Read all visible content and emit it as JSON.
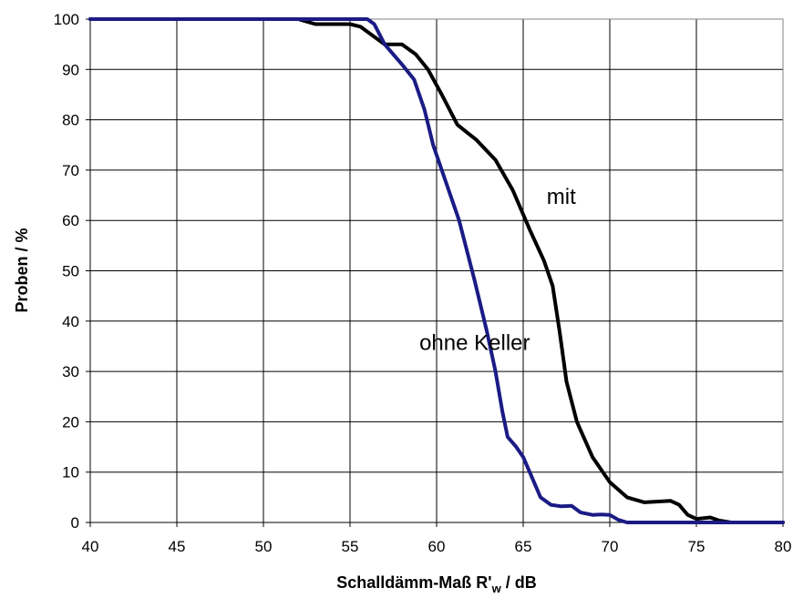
{
  "chart_data": {
    "type": "line",
    "title": "",
    "xlabel_main": "Schalldämm-Maß R'",
    "xlabel_sub": "w",
    "xlabel_tail": " / dB",
    "ylabel": "Proben / %",
    "xlim": [
      40,
      80
    ],
    "ylim": [
      0,
      100
    ],
    "x_ticks": [
      "40",
      "45",
      "50",
      "55",
      "60",
      "65",
      "70",
      "75",
      "80"
    ],
    "y_ticks": [
      "0",
      "10",
      "20",
      "30",
      "40",
      "50",
      "60",
      "70",
      "80",
      "90",
      "100"
    ],
    "grid": true,
    "series": [
      {
        "name": "mit",
        "color": "#000000",
        "points": [
          [
            40,
            100
          ],
          [
            52,
            100
          ],
          [
            53,
            99
          ],
          [
            55,
            99
          ],
          [
            55.6,
            98.5
          ],
          [
            56.2,
            97
          ],
          [
            57,
            95
          ],
          [
            58,
            95
          ],
          [
            58.8,
            93
          ],
          [
            59.5,
            90
          ],
          [
            60.3,
            85
          ],
          [
            61.2,
            79
          ],
          [
            62.3,
            76
          ],
          [
            63.4,
            72
          ],
          [
            64.4,
            66
          ],
          [
            65.4,
            58
          ],
          [
            66.2,
            52
          ],
          [
            66.7,
            47
          ],
          [
            67.1,
            38
          ],
          [
            67.5,
            28
          ],
          [
            68.1,
            20
          ],
          [
            69,
            13
          ],
          [
            70,
            8
          ],
          [
            71,
            5
          ],
          [
            72,
            4
          ],
          [
            73.5,
            4.3
          ],
          [
            74,
            3.5
          ],
          [
            74.5,
            1.5
          ],
          [
            75,
            0.7
          ],
          [
            75.8,
            1
          ],
          [
            76.3,
            0.4
          ],
          [
            77,
            0
          ],
          [
            80,
            0
          ]
        ]
      },
      {
        "name": "ohne Keller",
        "color": "#1b1b86",
        "points": [
          [
            40,
            100
          ],
          [
            55.5,
            100
          ],
          [
            56,
            100
          ],
          [
            56.4,
            99
          ],
          [
            57,
            95
          ],
          [
            58,
            91
          ],
          [
            58.7,
            88
          ],
          [
            59.3,
            82
          ],
          [
            59.8,
            75
          ],
          [
            60.5,
            68
          ],
          [
            61.3,
            60
          ],
          [
            62.2,
            48
          ],
          [
            62.9,
            38
          ],
          [
            63.4,
            30
          ],
          [
            63.8,
            22
          ],
          [
            64.1,
            17
          ],
          [
            64.6,
            15
          ],
          [
            65,
            13
          ],
          [
            65.5,
            9
          ],
          [
            66,
            5
          ],
          [
            66.6,
            3.5
          ],
          [
            67.2,
            3.2
          ],
          [
            67.8,
            3.3
          ],
          [
            68.3,
            2
          ],
          [
            69,
            1.5
          ],
          [
            69.5,
            1.6
          ],
          [
            70,
            1.5
          ],
          [
            70.5,
            0.5
          ],
          [
            71,
            0
          ],
          [
            80,
            0
          ]
        ]
      }
    ],
    "annotations": [
      {
        "text": "mit",
        "x": 67.2,
        "y": 63.3
      },
      {
        "text": "ohne Keller",
        "x": 62.2,
        "y": 34.3
      }
    ]
  }
}
